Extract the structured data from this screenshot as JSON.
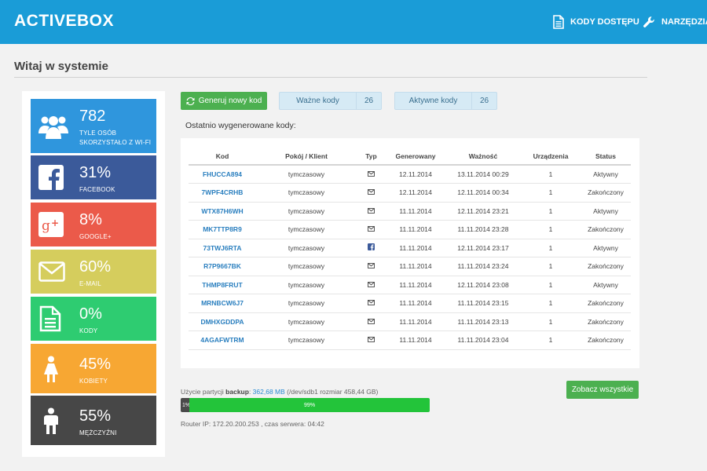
{
  "header": {
    "brand": "ACTIVEBOX",
    "nav": [
      {
        "label": "KODY DOSTĘPU",
        "icon": "document-icon"
      },
      {
        "label": "NARZĘDZIA",
        "icon": "wrench-icon"
      }
    ]
  },
  "page_title": "Witaj w systemie",
  "colors": {
    "header": "#1a9cd7",
    "wifi": "#2f96dd",
    "facebook": "#3b5a9a",
    "google": "#eb5a4a",
    "email": "#d5cd5d",
    "codes": "#2ecc71",
    "women": "#f7a733",
    "men": "#474747",
    "button_green": "#4cb050",
    "link_blue": "#2a7fbf"
  },
  "stats": [
    {
      "value": "782",
      "label": "TYLE OSÓB SKORZYSTAŁO Z WI-FI",
      "icon": "users-icon"
    },
    {
      "value": "31%",
      "label": "FACEBOOK",
      "icon": "facebook-icon"
    },
    {
      "value": "8%",
      "label": "GOOGLE+",
      "icon": "google-plus-icon"
    },
    {
      "value": "60%",
      "label": "E-MAIL",
      "icon": "envelope-icon"
    },
    {
      "value": "0%",
      "label": "KODY",
      "icon": "document-icon"
    },
    {
      "value": "45%",
      "label": "KOBIETY",
      "icon": "female-icon"
    },
    {
      "value": "55%",
      "label": "MĘŻCZYŹNI",
      "icon": "male-icon"
    }
  ],
  "toolbar": {
    "generate_label": "Generuj nowy kod",
    "valid_label": "Ważne kody",
    "valid_count": "26",
    "active_label": "Aktywne kody",
    "active_count": "26"
  },
  "recent_label": "Ostatnio wygenerowane kody:",
  "table": {
    "headers": [
      "Kod",
      "Pokój / Klient",
      "Typ",
      "Generowany",
      "Ważność",
      "Urządzenia",
      "Status"
    ],
    "rows": [
      {
        "code": "FHUCCA894",
        "room": "tymczasowy",
        "type": "envelope-icon",
        "generated": "12.11.2014",
        "valid": "13.11.2014 00:29",
        "devices": "1",
        "status": "Aktywny"
      },
      {
        "code": "7WPF4CRHB",
        "room": "tymczasowy",
        "type": "envelope-icon",
        "generated": "12.11.2014",
        "valid": "12.11.2014 00:34",
        "devices": "1",
        "status": "Zakończony"
      },
      {
        "code": "WTX87H6WH",
        "room": "tymczasowy",
        "type": "envelope-icon",
        "generated": "11.11.2014",
        "valid": "12.11.2014 23:21",
        "devices": "1",
        "status": "Aktywny"
      },
      {
        "code": "MK7TTP8R9",
        "room": "tymczasowy",
        "type": "envelope-icon",
        "generated": "11.11.2014",
        "valid": "11.11.2014 23:28",
        "devices": "1",
        "status": "Zakończony"
      },
      {
        "code": "73TWJ6RTA",
        "room": "tymczasowy",
        "type": "facebook-icon",
        "generated": "11.11.2014",
        "valid": "12.11.2014 23:17",
        "devices": "1",
        "status": "Aktywny"
      },
      {
        "code": "R7P9667BK",
        "room": "tymczasowy",
        "type": "envelope-icon",
        "generated": "11.11.2014",
        "valid": "11.11.2014 23:24",
        "devices": "1",
        "status": "Zakończony"
      },
      {
        "code": "THMP8FRUT",
        "room": "tymczasowy",
        "type": "envelope-icon",
        "generated": "11.11.2014",
        "valid": "12.11.2014 23:08",
        "devices": "1",
        "status": "Aktywny"
      },
      {
        "code": "MRNBCW6J7",
        "room": "tymczasowy",
        "type": "envelope-icon",
        "generated": "11.11.2014",
        "valid": "11.11.2014 23:15",
        "devices": "1",
        "status": "Zakończony"
      },
      {
        "code": "DMHXGDDPA",
        "room": "tymczasowy",
        "type": "envelope-icon",
        "generated": "11.11.2014",
        "valid": "11.11.2014 23:13",
        "devices": "1",
        "status": "Zakończony"
      },
      {
        "code": "4AGAFWTRM",
        "room": "tymczasowy",
        "type": "envelope-icon",
        "generated": "11.11.2014",
        "valid": "11.11.2014 23:04",
        "devices": "1",
        "status": "Zakończony"
      }
    ]
  },
  "usage": {
    "prefix": "Użycie partycji",
    "partition": "backup",
    "used": "362,68 MB",
    "details": "(/dev/sdb1   rozmiar 458,44 GB)",
    "used_percent": 1,
    "used_label": "1%",
    "free_label": "99%"
  },
  "router_info": "Router IP: 172.20.200.253 , czas serwera: 04:42",
  "see_all_label": "Zobacz wszystkie"
}
